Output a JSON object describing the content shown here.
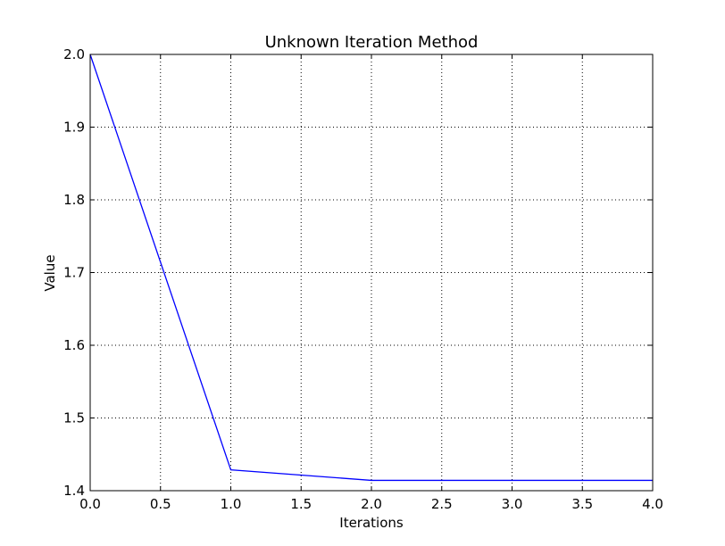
{
  "chart_data": {
    "type": "line",
    "title": "Unknown Iteration Method",
    "xlabel": "Iterations",
    "ylabel": "Value",
    "xlim": [
      0,
      4
    ],
    "ylim": [
      1.4,
      2.0
    ],
    "xticks": [
      0,
      0.5,
      1,
      1.5,
      2,
      2.5,
      3,
      3.5,
      4
    ],
    "xtick_labels": [
      "0.0",
      "0.5",
      "1.0",
      "1.5",
      "2.0",
      "2.5",
      "3.0",
      "3.5",
      "4.0"
    ],
    "yticks": [
      1.4,
      1.5,
      1.6,
      1.7,
      1.8,
      1.9,
      2.0
    ],
    "ytick_labels": [
      "1.4",
      "1.5",
      "1.6",
      "1.7",
      "1.8",
      "1.9",
      "2.0"
    ],
    "grid": true,
    "series": [
      {
        "x": [
          0,
          1,
          2,
          3,
          4
        ],
        "values": [
          2.0,
          1.4286,
          1.4142,
          1.4142,
          1.4142
        ],
        "color": "#0000ff"
      }
    ]
  }
}
